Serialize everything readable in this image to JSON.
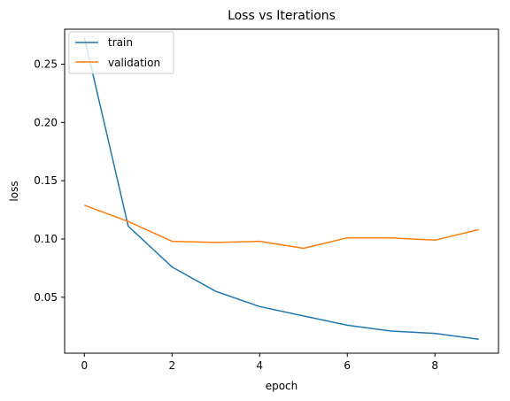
{
  "chart_data": {
    "type": "line",
    "title": "Loss vs Iterations",
    "xlabel": "epoch",
    "ylabel": "loss",
    "x": [
      0,
      1,
      2,
      3,
      4,
      5,
      6,
      7,
      8,
      9
    ],
    "xlim": [
      -0.45,
      9.45
    ],
    "ylim": [
      0.002,
      0.28
    ],
    "xticks": [
      0,
      2,
      4,
      6,
      8
    ],
    "yticks": [
      0.05,
      0.1,
      0.15,
      0.2,
      0.25
    ],
    "ytick_labels": [
      "0.05",
      "0.10",
      "0.15",
      "0.20",
      "0.25"
    ],
    "grid": false,
    "legend_position": "top-left",
    "series": [
      {
        "name": "train",
        "color": "#1f77b4",
        "values": [
          0.273,
          0.111,
          0.076,
          0.055,
          0.042,
          0.034,
          0.026,
          0.021,
          0.019,
          0.014
        ]
      },
      {
        "name": "validation",
        "color": "#ff7f0e",
        "values": [
          0.129,
          0.115,
          0.098,
          0.097,
          0.098,
          0.092,
          0.101,
          0.101,
          0.099,
          0.108
        ]
      }
    ]
  }
}
